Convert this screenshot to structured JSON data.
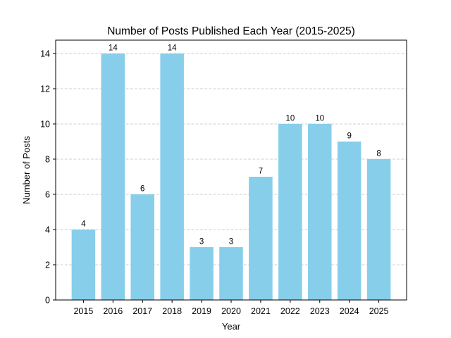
{
  "figure": {
    "title": "Number of Posts Published Each Year (2015-2025)",
    "xlabel": "Year",
    "ylabel": "Number of Posts"
  },
  "chart_data": {
    "type": "bar",
    "title": "Number of Posts Published Each Year (2015-2025)",
    "xlabel": "Year",
    "ylabel": "Number of Posts",
    "categories": [
      "2015",
      "2016",
      "2017",
      "2018",
      "2019",
      "2020",
      "2021",
      "2022",
      "2023",
      "2024",
      "2025"
    ],
    "values": [
      4,
      14,
      6,
      14,
      3,
      3,
      7,
      10,
      10,
      9,
      8
    ],
    "yticks": [
      0,
      2,
      4,
      6,
      8,
      10,
      12,
      14
    ],
    "ylim": [
      0,
      14.76
    ],
    "bar_color": "#87CEEB",
    "grid": true,
    "grid_color": "#cccccc",
    "spine_color": "#000000",
    "text_color": "#000000",
    "legend": "none",
    "value_labels": true
  }
}
